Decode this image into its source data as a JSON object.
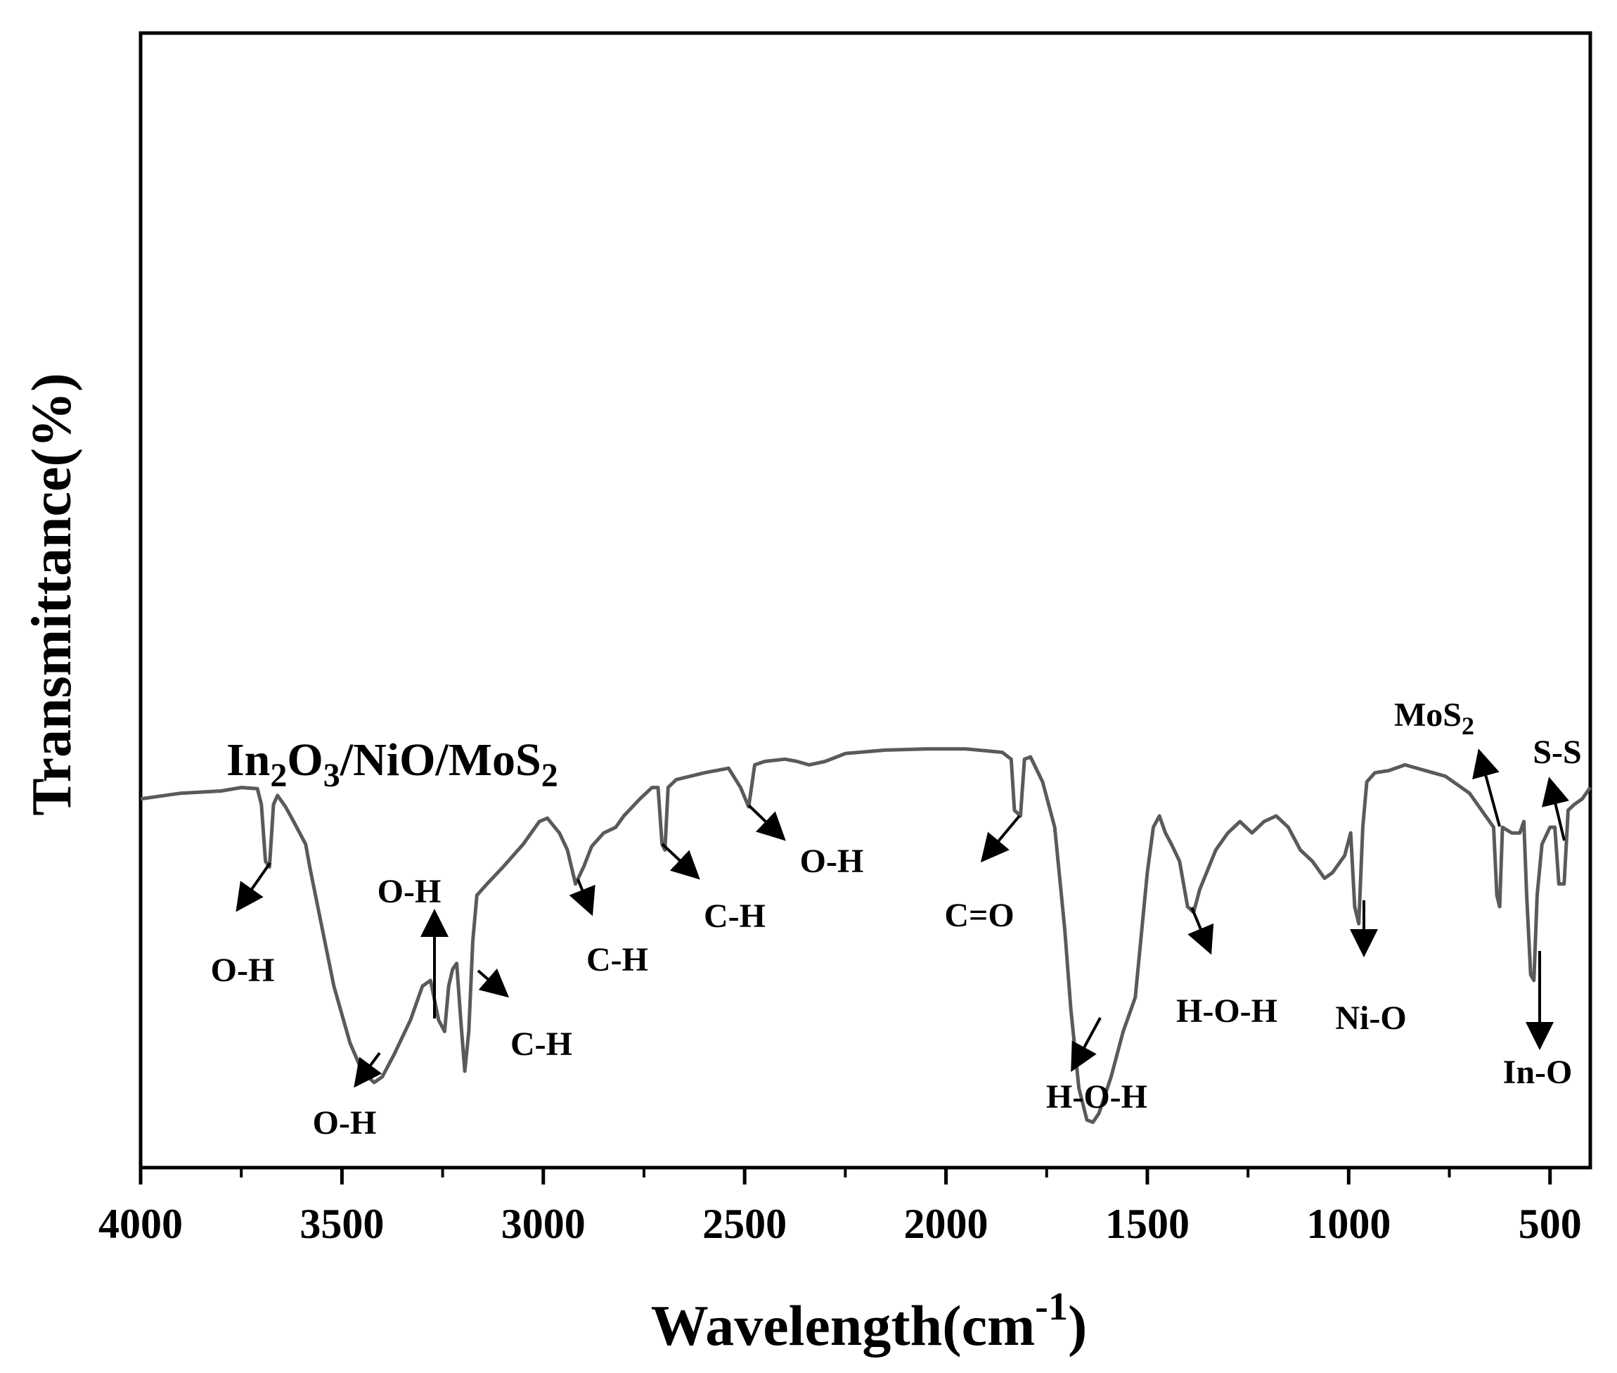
{
  "chart_data": {
    "type": "line",
    "title": "",
    "xlabel": "Wavelength(cm",
    "xlabel_superscript": "-1",
    "xlabel_close": ")",
    "ylabel": "Transmittance(%)",
    "xlim": [
      4000,
      400
    ],
    "ylim": [
      0,
      100
    ],
    "x_reversed": true,
    "y_ticks_shown": false,
    "grid": false,
    "x_ticks": [
      4000,
      3500,
      3000,
      2500,
      2000,
      1500,
      1000,
      500
    ],
    "x_tick_labels": [
      "4000",
      "3500",
      "3000",
      "2500",
      "2000",
      "1500",
      "1000",
      "500"
    ],
    "line_color": "#5a5a5a",
    "series": [
      {
        "label_parts": [
          "In",
          "2",
          "O",
          "3",
          "/NiO/MoS",
          "2"
        ],
        "points": [
          [
            4000,
            32.5
          ],
          [
            3900,
            33
          ],
          [
            3800,
            33.2
          ],
          [
            3750,
            33.5
          ],
          [
            3710,
            33.4
          ],
          [
            3700,
            32
          ],
          [
            3690,
            27
          ],
          [
            3680,
            26.5
          ],
          [
            3670,
            32
          ],
          [
            3660,
            32.8
          ],
          [
            3640,
            31.8
          ],
          [
            3620,
            30.5
          ],
          [
            3590,
            28.5
          ],
          [
            3580,
            26.5
          ],
          [
            3560,
            23
          ],
          [
            3520,
            16
          ],
          [
            3480,
            11
          ],
          [
            3450,
            8.5
          ],
          [
            3420,
            7.5
          ],
          [
            3400,
            8
          ],
          [
            3370,
            10
          ],
          [
            3330,
            13
          ],
          [
            3300,
            16
          ],
          [
            3280,
            16.5
          ],
          [
            3260,
            13
          ],
          [
            3245,
            12
          ],
          [
            3235,
            16
          ],
          [
            3225,
            17.5
          ],
          [
            3215,
            18
          ],
          [
            3205,
            13
          ],
          [
            3195,
            8.5
          ],
          [
            3185,
            12
          ],
          [
            3175,
            20
          ],
          [
            3165,
            24
          ],
          [
            3140,
            25
          ],
          [
            3100,
            26.5
          ],
          [
            3050,
            28.5
          ],
          [
            3010,
            30.5
          ],
          [
            2990,
            30.8
          ],
          [
            2960,
            29.5
          ],
          [
            2940,
            28
          ],
          [
            2920,
            25
          ],
          [
            2900,
            26.5
          ],
          [
            2880,
            28.3
          ],
          [
            2850,
            29.5
          ],
          [
            2820,
            30
          ],
          [
            2800,
            31
          ],
          [
            2760,
            32.5
          ],
          [
            2730,
            33.5
          ],
          [
            2715,
            33.5
          ],
          [
            2705,
            28.5
          ],
          [
            2698,
            28
          ],
          [
            2690,
            33.5
          ],
          [
            2670,
            34.2
          ],
          [
            2600,
            34.8
          ],
          [
            2540,
            35.2
          ],
          [
            2510,
            33.5
          ],
          [
            2490,
            31.8
          ],
          [
            2475,
            35.5
          ],
          [
            2450,
            35.8
          ],
          [
            2400,
            36
          ],
          [
            2370,
            35.8
          ],
          [
            2340,
            35.5
          ],
          [
            2300,
            35.8
          ],
          [
            2250,
            36.5
          ],
          [
            2150,
            36.8
          ],
          [
            2050,
            36.9
          ],
          [
            1950,
            36.9
          ],
          [
            1860,
            36.6
          ],
          [
            1838,
            36
          ],
          [
            1830,
            31.5
          ],
          [
            1815,
            31
          ],
          [
            1805,
            36
          ],
          [
            1790,
            36.2
          ],
          [
            1760,
            34
          ],
          [
            1730,
            30
          ],
          [
            1705,
            21
          ],
          [
            1690,
            14
          ],
          [
            1670,
            7
          ],
          [
            1650,
            4.2
          ],
          [
            1635,
            4
          ],
          [
            1620,
            4.8
          ],
          [
            1590,
            8
          ],
          [
            1560,
            12
          ],
          [
            1530,
            15
          ],
          [
            1500,
            26
          ],
          [
            1485,
            30
          ],
          [
            1470,
            31
          ],
          [
            1455,
            29.5
          ],
          [
            1440,
            28.5
          ],
          [
            1420,
            27
          ],
          [
            1400,
            23
          ],
          [
            1385,
            22.5
          ],
          [
            1370,
            24.5
          ],
          [
            1330,
            28
          ],
          [
            1300,
            29.5
          ],
          [
            1270,
            30.5
          ],
          [
            1240,
            29.5
          ],
          [
            1210,
            30.5
          ],
          [
            1180,
            31
          ],
          [
            1150,
            30
          ],
          [
            1120,
            28
          ],
          [
            1090,
            27
          ],
          [
            1060,
            25.5
          ],
          [
            1040,
            26
          ],
          [
            1010,
            27.5
          ],
          [
            995,
            29.5
          ],
          [
            985,
            23
          ],
          [
            975,
            21.5
          ],
          [
            965,
            30
          ],
          [
            955,
            34
          ],
          [
            935,
            34.8
          ],
          [
            900,
            35
          ],
          [
            860,
            35.5
          ],
          [
            810,
            35
          ],
          [
            760,
            34.5
          ],
          [
            700,
            33
          ],
          [
            660,
            31
          ],
          [
            640,
            30
          ],
          [
            632,
            24
          ],
          [
            625,
            23
          ],
          [
            618,
            30
          ],
          [
            595,
            29.5
          ],
          [
            575,
            29.5
          ],
          [
            565,
            30.5
          ],
          [
            558,
            24
          ],
          [
            548,
            17
          ],
          [
            540,
            16.5
          ],
          [
            532,
            24
          ],
          [
            520,
            28.5
          ],
          [
            500,
            30
          ],
          [
            488,
            30
          ],
          [
            478,
            25
          ],
          [
            465,
            25
          ],
          [
            455,
            31.5
          ],
          [
            440,
            32
          ],
          [
            420,
            32.5
          ],
          [
            400,
            33.5
          ]
        ]
      }
    ],
    "annotations": [
      {
        "label": "O-H",
        "peak": 3680
      },
      {
        "label": "O-H",
        "peak": 3420
      },
      {
        "label": "O-H",
        "peak": 3270
      },
      {
        "label": "C-H",
        "peak": 3165
      },
      {
        "label": "C-H",
        "peak": 2925
      },
      {
        "label": "C-H",
        "peak": 2700
      },
      {
        "label": "O-H",
        "peak": 2490
      },
      {
        "label": "C=O",
        "peak": 1810
      },
      {
        "label": "H-O-H",
        "peak": 1635
      },
      {
        "label": "H-O-H",
        "peak": 1390
      },
      {
        "label": "Ni-O",
        "peak": 975
      },
      {
        "label": "MoS",
        "label_sub": "2",
        "peak": 640
      },
      {
        "label": "In-O",
        "peak": 540
      },
      {
        "label": "S-S",
        "peak": 470
      }
    ]
  }
}
